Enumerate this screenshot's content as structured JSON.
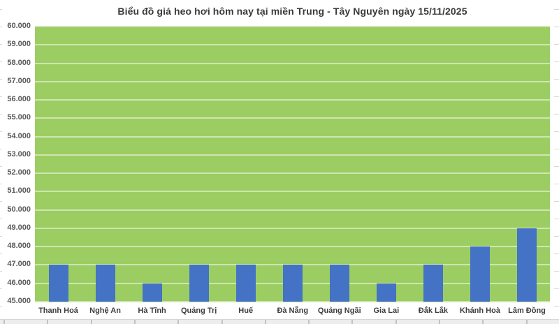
{
  "chart_data": {
    "type": "bar",
    "title": "Biểu đồ giá heo hơi hôm nay tại miền Trung - Tây Nguyên ngày 15/11/2025",
    "categories": [
      "Thanh Hoá",
      "Nghệ An",
      "Hà Tĩnh",
      "Quảng Trị",
      "Huế",
      "Đà Nẵng",
      "Quảng Ngãi",
      "Gia Lai",
      "Đắk Lắk",
      "Khánh Hoà",
      "Lâm Đồng"
    ],
    "values": [
      47000,
      47000,
      46000,
      47000,
      47000,
      47000,
      47000,
      46000,
      47000,
      48000,
      49000
    ],
    "xlabel": "",
    "ylabel": "",
    "ylim": [
      45000,
      60000
    ],
    "y_tick_step": 1000,
    "y_tick_labels": [
      "45.000",
      "46.000",
      "47.000",
      "48.000",
      "49.000",
      "50.000",
      "51.000",
      "52.000",
      "53.000",
      "54.000",
      "55.000",
      "56.000",
      "57.000",
      "58.000",
      "59.000",
      "60.000"
    ],
    "grid": "horizontal gridlines on, no legend",
    "legend": null,
    "colors": {
      "bar": "#4472c4",
      "plot_background": "#9ccd63",
      "gridline": "#cfe5b0",
      "title_text": "#3a3a3a",
      "y_tick_text": "#595959",
      "x_tick_text": "#3d3d3d"
    }
  }
}
